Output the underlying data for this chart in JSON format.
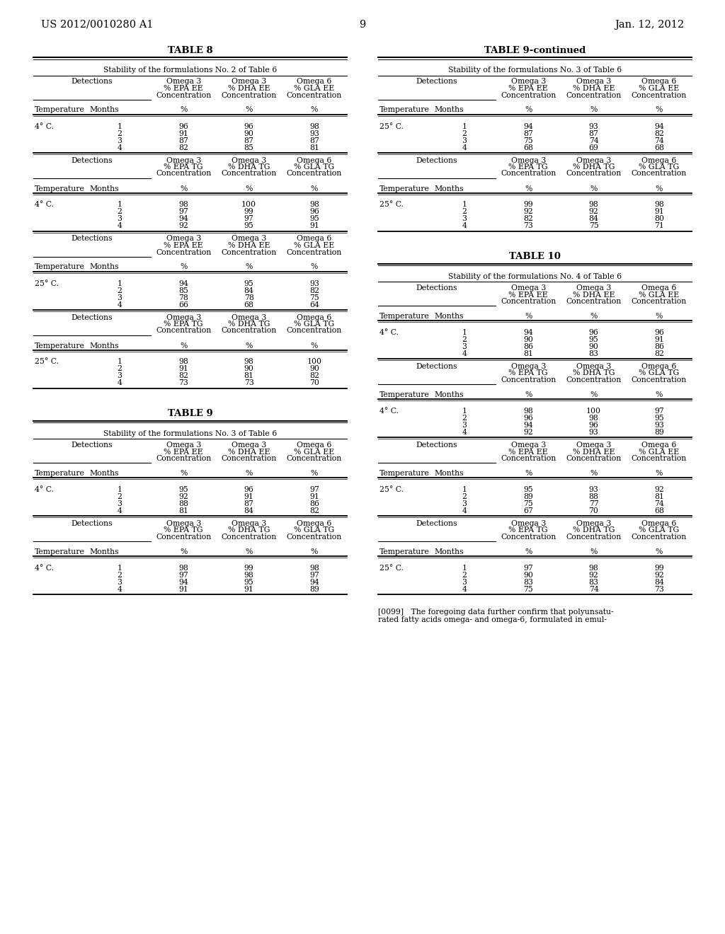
{
  "header_left": "US 2012/0010280 A1",
  "header_right": "Jan. 12, 2012",
  "page_number": "9",
  "bg_color": "#ffffff",
  "text_color": "#000000",
  "table8": {
    "title": "TABLE 8",
    "subtitle": "Stability of the formulations No. 2 of Table 6",
    "sections": [
      {
        "col2_header": "Omega 3\n% EPA EE\nConcentration",
        "col3_header": "Omega 3\n% DHA EE\nConcentration",
        "col4_header": "Omega 6\n% GLA EE\nConcentration",
        "temp": "4° C.",
        "rows": [
          [
            "1",
            "96",
            "96",
            "98"
          ],
          [
            "2",
            "91",
            "90",
            "93"
          ],
          [
            "3",
            "87",
            "87",
            "87"
          ],
          [
            "4",
            "82",
            "85",
            "81"
          ]
        ]
      },
      {
        "col2_header": "Omega 3\n% EPA TG\nConcentration",
        "col3_header": "Omega 3\n% DHA TG\nConcentration",
        "col4_header": "Omega 6\n% GLA TG\nConcentration",
        "temp": "4° C.",
        "rows": [
          [
            "1",
            "98",
            "100",
            "98"
          ],
          [
            "2",
            "97",
            "99",
            "96"
          ],
          [
            "3",
            "94",
            "97",
            "95"
          ],
          [
            "4",
            "92",
            "95",
            "91"
          ]
        ]
      },
      {
        "col2_header": "Omega 3\n% EPA EE\nConcentration",
        "col3_header": "Omega 3\n% DHA EE\nConcentration",
        "col4_header": "Omega 6\n% GLA EE\nConcentration",
        "temp": "25° C.",
        "rows": [
          [
            "1",
            "94",
            "95",
            "93"
          ],
          [
            "2",
            "85",
            "84",
            "82"
          ],
          [
            "3",
            "78",
            "78",
            "75"
          ],
          [
            "4",
            "66",
            "68",
            "64"
          ]
        ]
      },
      {
        "col2_header": "Omega 3\n% EPA TG\nConcentration",
        "col3_header": "Omega 3\n% DHA TG\nConcentration",
        "col4_header": "Omega 6\n% GLA TG\nConcentration",
        "temp": "25° C.",
        "rows": [
          [
            "1",
            "98",
            "98",
            "100"
          ],
          [
            "2",
            "91",
            "90",
            "90"
          ],
          [
            "3",
            "82",
            "81",
            "82"
          ],
          [
            "4",
            "73",
            "73",
            "70"
          ]
        ]
      }
    ]
  },
  "table9": {
    "title": "TABLE 9",
    "subtitle": "Stability of the formulations No. 3 of Table 6",
    "sections": [
      {
        "col2_header": "Omega 3\n% EPA EE\nConcentration",
        "col3_header": "Omega 3\n% DHA EE\nConcentration",
        "col4_header": "Omega 6\n% GLA EE\nConcentration",
        "temp": "4° C.",
        "rows": [
          [
            "1",
            "95",
            "96",
            "97"
          ],
          [
            "2",
            "92",
            "91",
            "91"
          ],
          [
            "3",
            "88",
            "87",
            "86"
          ],
          [
            "4",
            "81",
            "84",
            "82"
          ]
        ]
      },
      {
        "col2_header": "Omega 3\n% EPA TG\nConcentration",
        "col3_header": "Omega 3\n% DHA TG\nConcentration",
        "col4_header": "Omega 6\n% GLA TG\nConcentration",
        "temp": "4° C.",
        "rows": [
          [
            "1",
            "98",
            "99",
            "98"
          ],
          [
            "2",
            "97",
            "98",
            "97"
          ],
          [
            "3",
            "94",
            "95",
            "94"
          ],
          [
            "4",
            "91",
            "91",
            "89"
          ]
        ]
      }
    ]
  },
  "table9cont": {
    "title": "TABLE 9-continued",
    "subtitle": "Stability of the formulations No. 3 of Table 6",
    "sections": [
      {
        "col2_header": "Omega 3\n% EPA EE\nConcentration",
        "col3_header": "Omega 3\n% DHA EE\nConcentration",
        "col4_header": "Omega 6\n% GLA EE\nConcentration",
        "temp": "25° C.",
        "rows": [
          [
            "1",
            "94",
            "93",
            "94"
          ],
          [
            "2",
            "87",
            "87",
            "82"
          ],
          [
            "3",
            "75",
            "74",
            "74"
          ],
          [
            "4",
            "68",
            "69",
            "68"
          ]
        ]
      },
      {
        "col2_header": "Omega 3\n% EPA TG\nConcentration",
        "col3_header": "Omega 3\n% DHA TG\nConcentration",
        "col4_header": "Omega 6\n% GLA TG\nConcentration",
        "temp": "25° C.",
        "rows": [
          [
            "1",
            "99",
            "98",
            "98"
          ],
          [
            "2",
            "92",
            "92",
            "91"
          ],
          [
            "3",
            "82",
            "84",
            "80"
          ],
          [
            "4",
            "73",
            "75",
            "71"
          ]
        ]
      }
    ]
  },
  "table10": {
    "title": "TABLE 10",
    "subtitle": "Stability of the formulations No. 4 of Table 6",
    "sections": [
      {
        "col2_header": "Omega 3\n% EPA EE\nConcentration",
        "col3_header": "Omega 3\n% DHA EE\nConcentration",
        "col4_header": "Omega 6\n% GLA EE\nConcentration",
        "temp": "4° C.",
        "rows": [
          [
            "1",
            "94",
            "96",
            "96"
          ],
          [
            "2",
            "90",
            "95",
            "91"
          ],
          [
            "3",
            "86",
            "90",
            "86"
          ],
          [
            "4",
            "81",
            "83",
            "82"
          ]
        ]
      },
      {
        "col2_header": "Omega 3\n% EPA TG\nConcentration",
        "col3_header": "Omega 3\n% DHA TG\nConcentration",
        "col4_header": "Omega 6\n% GLA TG\nConcentration",
        "temp": "4° C.",
        "rows": [
          [
            "1",
            "98",
            "100",
            "97"
          ],
          [
            "2",
            "96",
            "98",
            "95"
          ],
          [
            "3",
            "94",
            "96",
            "93"
          ],
          [
            "4",
            "92",
            "93",
            "89"
          ]
        ]
      },
      {
        "col2_header": "Omega 3\n% EPA EE\nConcentration",
        "col3_header": "Omega 3\n% DHA EE\nConcentration",
        "col4_header": "Omega 6\n% GLA EE\nConcentration",
        "temp": "25° C.",
        "rows": [
          [
            "1",
            "95",
            "93",
            "92"
          ],
          [
            "2",
            "89",
            "88",
            "81"
          ],
          [
            "3",
            "75",
            "77",
            "74"
          ],
          [
            "4",
            "67",
            "70",
            "68"
          ]
        ]
      },
      {
        "col2_header": "Omega 3\n% EPA TG\nConcentration",
        "col3_header": "Omega 3\n% DHA TG\nConcentration",
        "col4_header": "Omega 6\n% GLA TG\nConcentration",
        "temp": "25° C.",
        "rows": [
          [
            "1",
            "97",
            "98",
            "99"
          ],
          [
            "2",
            "90",
            "92",
            "92"
          ],
          [
            "3",
            "83",
            "83",
            "84"
          ],
          [
            "4",
            "75",
            "74",
            "73"
          ]
        ]
      }
    ]
  },
  "footer_text": "[0099]   The foregoing data further confirm that polyunsatu-\nrated fatty acids omega- and omega-6, formulated in emul-"
}
